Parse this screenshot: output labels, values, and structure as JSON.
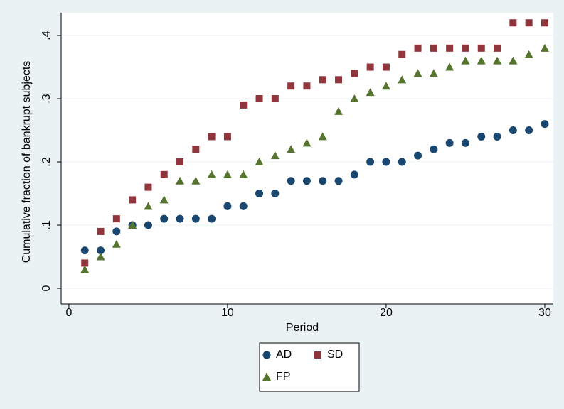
{
  "chart_data": {
    "type": "scatter",
    "x_label": "Period",
    "y_label": "Cumulative fraction of bankrupt subjects",
    "x": [
      1,
      2,
      3,
      4,
      5,
      6,
      7,
      8,
      9,
      10,
      11,
      12,
      13,
      14,
      15,
      16,
      17,
      18,
      19,
      20,
      21,
      22,
      23,
      24,
      25,
      26,
      27,
      28,
      29,
      30
    ],
    "series": [
      {
        "name": "AD",
        "color": "#1a476f",
        "marker": "circle",
        "values": [
          0.06,
          0.06,
          0.09,
          0.1,
          0.1,
          0.11,
          0.11,
          0.11,
          0.11,
          0.13,
          0.13,
          0.15,
          0.15,
          0.17,
          0.17,
          0.17,
          0.17,
          0.18,
          0.2,
          0.2,
          0.2,
          0.21,
          0.22,
          0.23,
          0.23,
          0.24,
          0.24,
          0.25,
          0.25,
          0.26
        ]
      },
      {
        "name": "SD",
        "color": "#90353b",
        "marker": "square",
        "values": [
          0.04,
          0.09,
          0.11,
          0.14,
          0.16,
          0.18,
          0.2,
          0.22,
          0.24,
          0.24,
          0.29,
          0.3,
          0.3,
          0.32,
          0.32,
          0.33,
          0.33,
          0.34,
          0.35,
          0.35,
          0.37,
          0.38,
          0.38,
          0.38,
          0.38,
          0.38,
          0.38,
          0.42,
          0.42,
          0.42
        ]
      },
      {
        "name": "FP",
        "color": "#55752f",
        "marker": "triangle",
        "values": [
          0.03,
          0.05,
          0.07,
          0.1,
          0.13,
          0.14,
          0.17,
          0.17,
          0.18,
          0.18,
          0.18,
          0.2,
          0.21,
          0.22,
          0.23,
          0.24,
          0.28,
          0.3,
          0.31,
          0.32,
          0.33,
          0.34,
          0.34,
          0.35,
          0.36,
          0.36,
          0.36,
          0.36,
          0.37,
          0.38
        ]
      }
    ],
    "xlim": [
      -0.49,
      30.54
    ],
    "xticks": [
      0,
      10,
      20,
      30
    ],
    "ylim": [
      -0.0247,
      0.436
    ],
    "yticks": [
      0,
      {
        "value": 0.1,
        "label": ".1"
      },
      {
        "value": 0.2,
        "label": ".2"
      },
      {
        "value": 0.3,
        "label": ".3"
      },
      {
        "value": 0.4,
        "label": ".4"
      }
    ],
    "grid": true
  }
}
